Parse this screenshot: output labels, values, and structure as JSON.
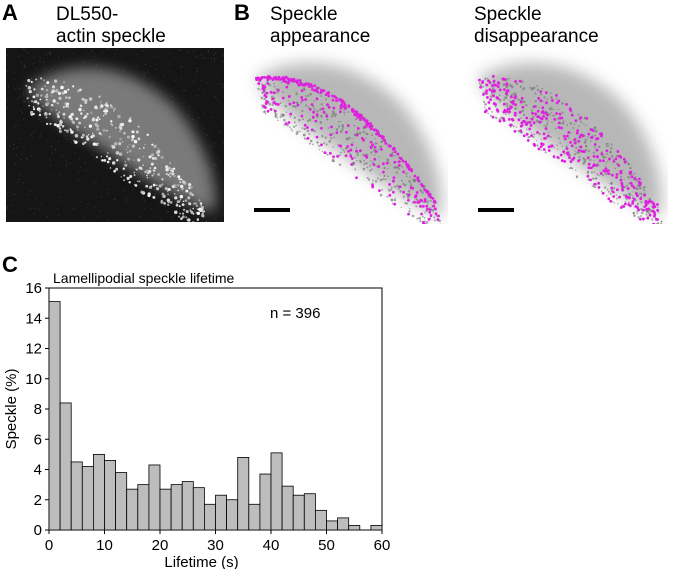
{
  "panels": {
    "a": {
      "letter": "A",
      "title": "DL550-\nactin speckle"
    },
    "b": {
      "letter": "B",
      "appearance_title": "Speckle\nappearance",
      "disappearance_title": "Speckle\ndisappearance"
    },
    "c": {
      "letter": "C"
    }
  },
  "colors": {
    "speckle_marker": "#e020e0",
    "bar_fill": "#bdbdbd",
    "cell_gray": "#9a9a9a",
    "scalebar": "#000000"
  },
  "chart_data": {
    "type": "bar",
    "title": "Lamellipodial speckle lifetime",
    "annotation": "n = 396",
    "xlabel": "Lifetime (s)",
    "ylabel": "Speckle (%)",
    "xlim": [
      0,
      60
    ],
    "ylim": [
      0,
      16
    ],
    "bin_width": 2,
    "bin_starts": [
      0,
      2,
      4,
      6,
      8,
      10,
      12,
      14,
      16,
      18,
      20,
      22,
      24,
      26,
      28,
      30,
      32,
      34,
      36,
      38,
      40,
      42,
      44,
      46,
      48,
      50,
      52,
      54,
      56,
      58
    ],
    "values": [
      15.1,
      8.4,
      4.5,
      4.2,
      5.0,
      4.6,
      3.8,
      2.7,
      3.0,
      4.3,
      2.7,
      3.0,
      3.2,
      2.8,
      1.7,
      2.3,
      2.0,
      4.8,
      1.7,
      3.7,
      5.1,
      2.9,
      2.3,
      2.4,
      1.3,
      0.6,
      0.8,
      0.3,
      0.0,
      0.3
    ],
    "xticks": [
      0,
      10,
      20,
      30,
      40,
      50,
      60
    ],
    "yticks": [
      0,
      2,
      4,
      6,
      8,
      10,
      12,
      14,
      16
    ],
    "grid": false
  }
}
